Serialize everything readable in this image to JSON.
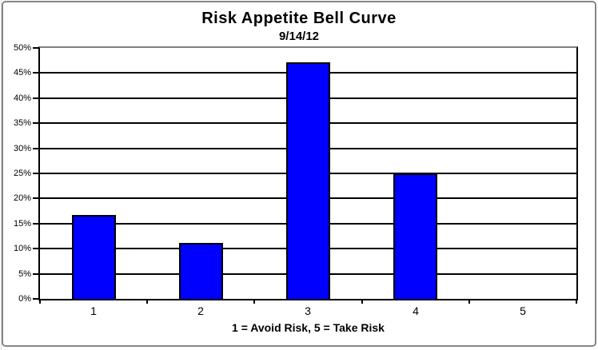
{
  "chart_data": {
    "type": "bar",
    "title": "Risk Appetite Bell Curve",
    "subtitle": "9/14/12",
    "xlabel": "1 = Avoid Risk, 5 = Take Risk",
    "ylabel": "",
    "categories": [
      "1",
      "2",
      "3",
      "4",
      "5"
    ],
    "values": [
      16.7,
      11.1,
      47.2,
      25.0,
      0
    ],
    "y_tick_labels": [
      "0%",
      "5%",
      "10%",
      "15%",
      "20%",
      "25%",
      "30%",
      "35%",
      "40%",
      "45%",
      "50%"
    ],
    "ylim": [
      0,
      50
    ],
    "y_step": 5,
    "grid": "horizontal-black",
    "legend_position": "none",
    "bar_color": "#0000ff",
    "bar_border_color": "#000000",
    "gridline_color": "#000000",
    "plot_top_border_color": "#808080",
    "chart_border_color": "#868686",
    "background_color": "#ffffff"
  }
}
